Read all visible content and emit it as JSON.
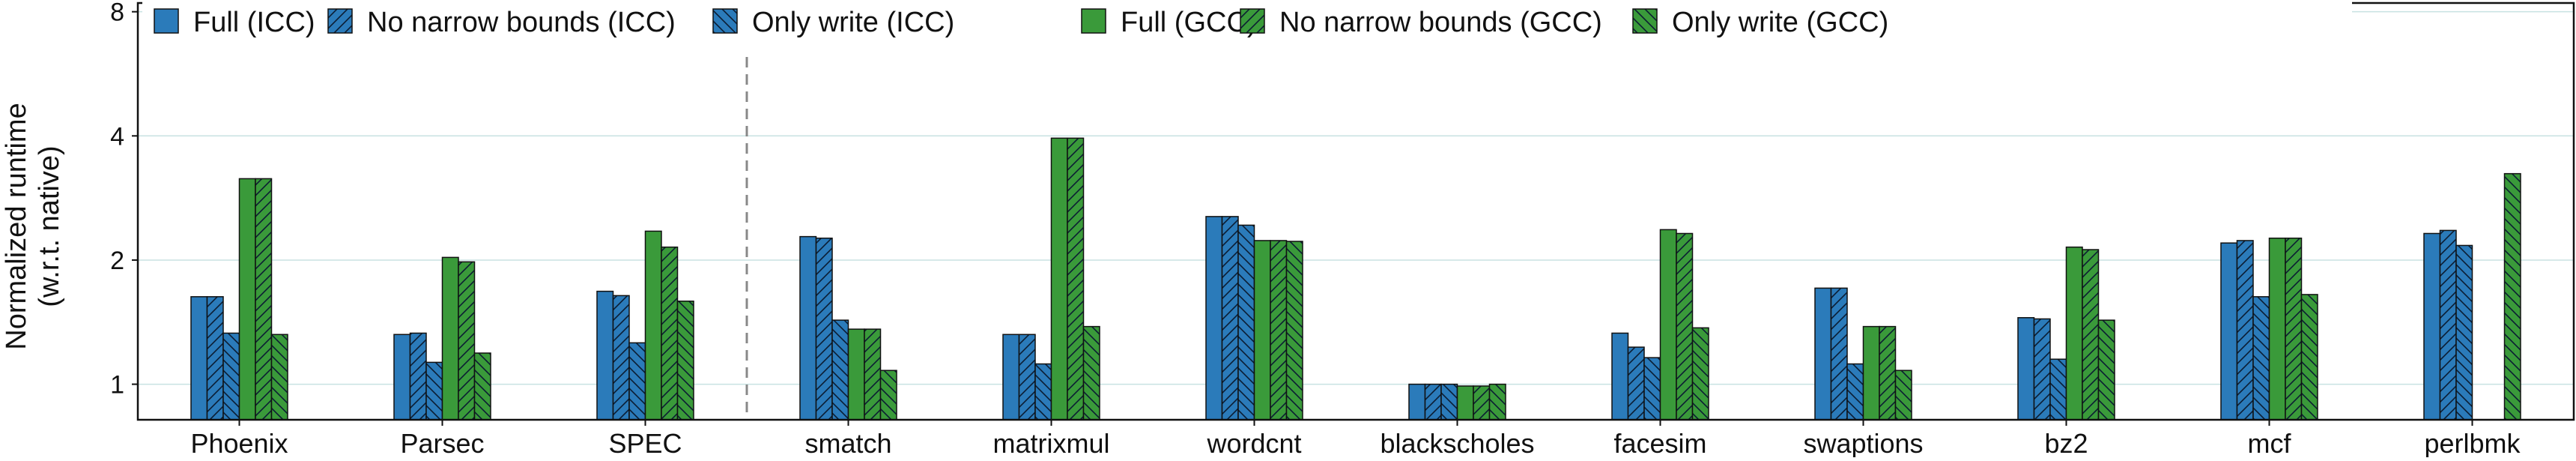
{
  "chart_data": {
    "type": "bar",
    "ylabel_lines": [
      "Normalized runtime",
      "(w.r.t. native)"
    ],
    "y_scale": "log2",
    "ylim": [
      0.82,
      8.4
    ],
    "y_ticks": [
      {
        "value": 1,
        "label": "1"
      },
      {
        "value": 2,
        "label": "2"
      },
      {
        "value": 4,
        "label": "4"
      },
      {
        "value": 8,
        "label": "8"
      }
    ],
    "grid": true,
    "legend_position": "top",
    "group_separator_after_index": 2,
    "categories": [
      "Phoenix",
      "Parsec",
      "SPEC",
      "smatch",
      "matrixmul",
      "wordcnt",
      "blackscholes",
      "facesim",
      "swaptions",
      "bz2",
      "mcf",
      "perlbmk"
    ],
    "series": [
      {
        "name": "Full (ICC)",
        "color": "#2b7bba",
        "pattern": "solid",
        "values": [
          1.63,
          1.32,
          1.68,
          2.28,
          1.32,
          2.55,
          1.0,
          1.33,
          1.71,
          1.45,
          2.2,
          2.32
        ]
      },
      {
        "name": "No narrow bounds (ICC)",
        "color": "#2b7bba",
        "pattern": "hatch-forward",
        "values": [
          1.63,
          1.33,
          1.64,
          2.26,
          1.32,
          2.55,
          1.0,
          1.23,
          1.71,
          1.44,
          2.23,
          2.36
        ]
      },
      {
        "name": "Only write (ICC)",
        "color": "#2b7bba",
        "pattern": "hatch-back",
        "values": [
          1.33,
          1.13,
          1.26,
          1.43,
          1.12,
          2.43,
          1.0,
          1.16,
          1.12,
          1.15,
          1.63,
          2.17
        ]
      },
      {
        "name": "Full (GCC)",
        "color": "#3a9a3a",
        "pattern": "solid",
        "values": [
          3.15,
          2.03,
          2.35,
          1.36,
          3.95,
          2.23,
          0.99,
          2.37,
          1.38,
          2.15,
          2.26,
          null
        ]
      },
      {
        "name": "No narrow bounds (GCC)",
        "color": "#3a9a3a",
        "pattern": "hatch-forward",
        "values": [
          3.15,
          1.98,
          2.15,
          1.36,
          3.95,
          2.23,
          0.99,
          2.32,
          1.38,
          2.12,
          2.26,
          null
        ]
      },
      {
        "name": "Only write (GCC)",
        "color": "#3a9a3a",
        "pattern": "hatch-back",
        "values": [
          1.32,
          1.19,
          1.59,
          1.08,
          1.38,
          2.22,
          1.0,
          1.37,
          1.08,
          1.43,
          1.65,
          3.24
        ]
      }
    ]
  }
}
